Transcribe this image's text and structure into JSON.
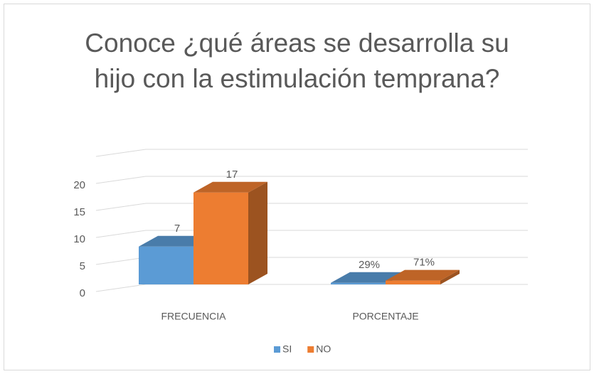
{
  "chart_data": {
    "type": "bar3d",
    "title": "Conoce ¿qué áreas se desarrolla su hijo con la estimulación temprana?",
    "categories": [
      "FRECUENCIA",
      "PORCENTAJE"
    ],
    "series": [
      {
        "name": "SI",
        "color": "#5b9bd5",
        "values": [
          7,
          0.29
        ],
        "value_labels": [
          "7",
          "29%"
        ]
      },
      {
        "name": "NO",
        "color": "#ed7d31",
        "values": [
          17,
          0.71
        ],
        "value_labels": [
          "17",
          "71%"
        ]
      }
    ],
    "ylim": [
      0,
      25
    ],
    "yticks": [
      0,
      5,
      10,
      15,
      20
    ],
    "grid": true,
    "legend": "bottom"
  }
}
